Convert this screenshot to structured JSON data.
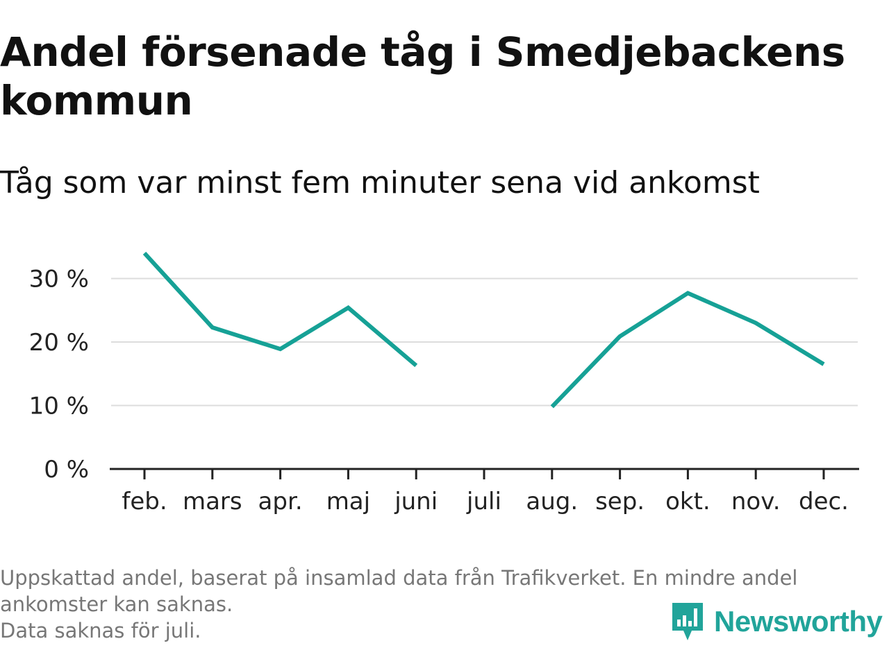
{
  "chart_data": {
    "type": "line",
    "title": "Andel försenade tåg i Smedjebackens kommun",
    "subtitle": "Tåg som var minst fem minuter sena vid ankomst",
    "categories": [
      "feb.",
      "mars",
      "apr.",
      "maj",
      "juni",
      "juli",
      "aug.",
      "sep.",
      "okt.",
      "nov.",
      "dec."
    ],
    "series": [
      {
        "values": [
          34.0,
          22.3,
          18.9,
          25.4,
          16.3,
          null,
          9.8,
          20.9,
          27.7,
          23.0,
          16.5
        ]
      }
    ],
    "y_ticks": [
      0,
      10,
      20,
      30
    ],
    "y_tick_labels": [
      "0 %",
      "10 %",
      "20 %",
      "30 %"
    ],
    "ylim": [
      0,
      35
    ],
    "xlabel": "",
    "ylabel": "",
    "grid": true,
    "line_color": "#16a196"
  },
  "footer": {
    "note_line1": "Uppskattad andel, baserat på insamlad data från Trafikverket. En mindre andel",
    "note_line2": "ankomster kan saknas.",
    "note_line3": "Data saknas för juli."
  },
  "logo": {
    "text": "Newsworthy",
    "icon": "newsworthy-bar-chart-icon",
    "color": "#21a49a"
  }
}
